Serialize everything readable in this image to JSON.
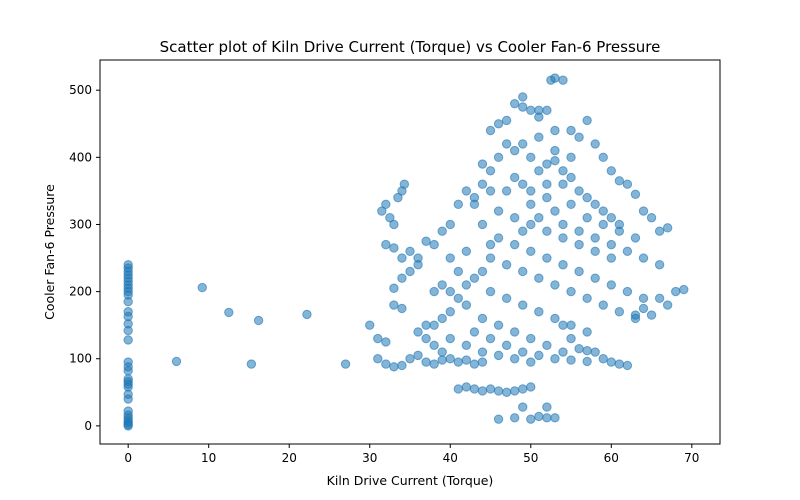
{
  "chart_data": {
    "type": "scatter",
    "title": "Scatter plot of Kiln Drive Current (Torque) vs Cooler Fan-6 Pressure",
    "xlabel": "Kiln Drive Current (Torque)",
    "ylabel": "Cooler Fan-6 Pressure",
    "xlim": [
      -3.5,
      73.5
    ],
    "ylim": [
      -27,
      545
    ],
    "x_ticks": [
      0,
      10,
      20,
      30,
      40,
      50,
      60,
      70
    ],
    "y_ticks": [
      0,
      100,
      200,
      300,
      400,
      500
    ],
    "grid": false,
    "legend": "none",
    "colors": {
      "marker": "#1f77b4",
      "marker_opacity": 0.55
    },
    "points": [
      [
        0,
        0
      ],
      [
        0,
        2
      ],
      [
        0,
        5
      ],
      [
        0,
        8
      ],
      [
        0,
        12
      ],
      [
        0,
        16
      ],
      [
        0,
        22
      ],
      [
        0,
        40
      ],
      [
        0,
        47
      ],
      [
        0,
        58
      ],
      [
        0,
        62
      ],
      [
        0,
        66
      ],
      [
        0,
        70
      ],
      [
        0,
        82
      ],
      [
        0,
        88
      ],
      [
        0,
        95
      ],
      [
        0,
        128
      ],
      [
        0,
        142
      ],
      [
        0,
        152
      ],
      [
        0,
        163
      ],
      [
        0,
        170
      ],
      [
        0,
        185
      ],
      [
        0,
        195
      ],
      [
        0,
        200
      ],
      [
        0,
        205
      ],
      [
        0,
        210
      ],
      [
        0,
        215
      ],
      [
        0,
        220
      ],
      [
        0,
        225
      ],
      [
        0,
        230
      ],
      [
        0,
        235
      ],
      [
        0,
        240
      ],
      [
        6,
        96
      ],
      [
        9.2,
        206
      ],
      [
        12.5,
        169
      ],
      [
        15.3,
        92
      ],
      [
        16.2,
        157
      ],
      [
        22.2,
        166
      ],
      [
        27,
        92
      ],
      [
        30,
        150
      ],
      [
        31,
        100
      ],
      [
        32,
        92
      ],
      [
        33,
        88
      ],
      [
        34,
        90
      ],
      [
        31,
        130
      ],
      [
        32,
        125
      ],
      [
        32,
        270
      ],
      [
        33,
        265
      ],
      [
        31.5,
        320
      ],
      [
        32,
        330
      ],
      [
        32.5,
        310
      ],
      [
        33,
        300
      ],
      [
        33.5,
        340
      ],
      [
        34,
        350
      ],
      [
        34.3,
        360
      ],
      [
        33,
        180
      ],
      [
        34,
        175
      ],
      [
        33,
        205
      ],
      [
        34,
        220
      ],
      [
        35,
        230
      ],
      [
        34,
        250
      ],
      [
        35,
        260
      ],
      [
        36,
        240
      ],
      [
        36,
        250
      ],
      [
        37,
        275
      ],
      [
        38,
        270
      ],
      [
        39,
        290
      ],
      [
        36,
        140
      ],
      [
        37,
        130
      ],
      [
        38,
        120
      ],
      [
        39,
        110
      ],
      [
        37,
        150
      ],
      [
        38,
        200
      ],
      [
        39,
        210
      ],
      [
        40,
        100
      ],
      [
        41,
        95
      ],
      [
        42,
        98
      ],
      [
        43,
        92
      ],
      [
        44,
        95
      ],
      [
        40,
        300
      ],
      [
        41,
        330
      ],
      [
        42,
        350
      ],
      [
        43,
        340
      ],
      [
        44,
        360
      ],
      [
        45,
        380
      ],
      [
        45,
        440
      ],
      [
        46,
        450
      ],
      [
        47,
        455
      ],
      [
        48,
        480
      ],
      [
        49,
        475
      ],
      [
        50,
        470
      ],
      [
        51,
        460
      ],
      [
        52,
        470
      ],
      [
        52.5,
        515
      ],
      [
        53,
        518
      ],
      [
        54,
        515
      ],
      [
        49,
        490
      ],
      [
        51,
        470
      ],
      [
        55,
        440
      ],
      [
        56,
        430
      ],
      [
        57,
        455
      ],
      [
        58,
        420
      ],
      [
        59,
        400
      ],
      [
        60,
        380
      ],
      [
        61,
        365
      ],
      [
        62,
        360
      ],
      [
        63,
        345
      ],
      [
        64,
        320
      ],
      [
        65,
        310
      ],
      [
        66,
        290
      ],
      [
        67,
        295
      ],
      [
        68,
        200
      ],
      [
        69,
        203
      ],
      [
        66,
        190
      ],
      [
        67,
        180
      ],
      [
        64,
        175
      ],
      [
        65,
        165
      ],
      [
        63,
        160
      ],
      [
        62,
        90
      ],
      [
        61,
        92
      ],
      [
        60,
        95
      ],
      [
        59,
        100
      ],
      [
        58,
        110
      ],
      [
        57,
        112
      ],
      [
        56,
        115
      ],
      [
        55,
        130
      ],
      [
        54,
        150
      ],
      [
        41,
        55
      ],
      [
        42,
        58
      ],
      [
        43,
        55
      ],
      [
        44,
        52
      ],
      [
        45,
        55
      ],
      [
        46,
        52
      ],
      [
        47,
        50
      ],
      [
        48,
        52
      ],
      [
        49,
        55
      ],
      [
        50,
        58
      ],
      [
        46,
        10
      ],
      [
        48,
        12
      ],
      [
        49,
        28
      ],
      [
        50,
        10
      ],
      [
        52,
        12
      ],
      [
        52,
        28
      ],
      [
        53,
        12
      ],
      [
        51,
        14
      ],
      [
        50,
        400
      ],
      [
        51,
        380
      ],
      [
        52,
        390
      ],
      [
        53,
        410
      ],
      [
        54,
        360
      ],
      [
        55,
        370
      ],
      [
        56,
        350
      ],
      [
        57,
        340
      ],
      [
        58,
        330
      ],
      [
        59,
        320
      ],
      [
        60,
        310
      ],
      [
        61,
        300
      ],
      [
        48,
        410
      ],
      [
        47,
        420
      ],
      [
        46,
        400
      ],
      [
        44,
        390
      ],
      [
        45,
        350
      ],
      [
        43,
        330
      ],
      [
        47,
        350
      ],
      [
        49,
        360
      ],
      [
        50,
        330
      ],
      [
        52,
        340
      ],
      [
        54,
        300
      ],
      [
        56,
        290
      ],
      [
        58,
        280
      ],
      [
        60,
        270
      ],
      [
        62,
        260
      ],
      [
        64,
        250
      ],
      [
        66,
        240
      ],
      [
        44,
        300
      ],
      [
        46,
        280
      ],
      [
        48,
        270
      ],
      [
        50,
        260
      ],
      [
        52,
        250
      ],
      [
        54,
        240
      ],
      [
        56,
        230
      ],
      [
        58,
        220
      ],
      [
        60,
        210
      ],
      [
        62,
        200
      ],
      [
        64,
        190
      ],
      [
        42,
        260
      ],
      [
        40,
        250
      ],
      [
        41,
        230
      ],
      [
        43,
        220
      ],
      [
        45,
        200
      ],
      [
        47,
        190
      ],
      [
        49,
        180
      ],
      [
        51,
        170
      ],
      [
        53,
        160
      ],
      [
        55,
        150
      ],
      [
        57,
        140
      ],
      [
        42,
        180
      ],
      [
        40,
        170
      ],
      [
        39,
        160
      ],
      [
        38,
        150
      ],
      [
        44,
        160
      ],
      [
        46,
        150
      ],
      [
        48,
        140
      ],
      [
        50,
        130
      ],
      [
        52,
        120
      ],
      [
        54,
        110
      ],
      [
        40,
        130
      ],
      [
        42,
        120
      ],
      [
        44,
        110
      ],
      [
        46,
        105
      ],
      [
        48,
        100
      ],
      [
        50,
        95
      ],
      [
        35,
        100
      ],
      [
        36,
        105
      ],
      [
        37,
        95
      ],
      [
        38,
        92
      ],
      [
        39,
        98
      ],
      [
        45,
        250
      ],
      [
        47,
        240
      ],
      [
        49,
        230
      ],
      [
        51,
        220
      ],
      [
        53,
        210
      ],
      [
        55,
        200
      ],
      [
        57,
        190
      ],
      [
        59,
        180
      ],
      [
        61,
        170
      ],
      [
        63,
        165
      ],
      [
        46,
        320
      ],
      [
        48,
        310
      ],
      [
        50,
        300
      ],
      [
        52,
        290
      ],
      [
        54,
        280
      ],
      [
        56,
        270
      ],
      [
        58,
        260
      ],
      [
        60,
        250
      ],
      [
        45,
        270
      ],
      [
        49,
        290
      ],
      [
        51,
        310
      ],
      [
        53,
        320
      ],
      [
        55,
        330
      ],
      [
        57,
        310
      ],
      [
        59,
        300
      ],
      [
        61,
        290
      ],
      [
        63,
        280
      ],
      [
        49,
        420
      ],
      [
        51,
        430
      ],
      [
        53,
        440
      ],
      [
        50,
        350
      ],
      [
        48,
        370
      ],
      [
        52,
        360
      ],
      [
        54,
        380
      ],
      [
        55,
        400
      ],
      [
        53,
        395
      ],
      [
        44,
        230
      ],
      [
        42,
        210
      ],
      [
        40,
        200
      ],
      [
        41,
        190
      ],
      [
        43,
        140
      ],
      [
        45,
        130
      ],
      [
        47,
        120
      ],
      [
        49,
        110
      ],
      [
        51,
        105
      ],
      [
        53,
        100
      ],
      [
        55,
        98
      ],
      [
        57,
        96
      ]
    ]
  }
}
